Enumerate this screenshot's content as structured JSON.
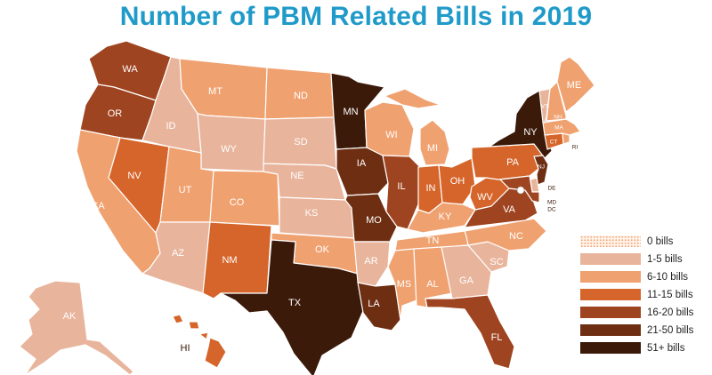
{
  "title": "Number of PBM Related Bills in 2019",
  "colors": {
    "title": "#1f9ac9",
    "0": "#fff3ea",
    "1-5": "#e8b49c",
    "6-10": "#f0a170",
    "11-15": "#d5652a",
    "16-20": "#9f4420",
    "21-50": "#6e2e12",
    "51+": "#3b1a0a"
  },
  "legend": [
    {
      "key": "0",
      "label": "0 bills"
    },
    {
      "key": "1-5",
      "label": "1-5 bills"
    },
    {
      "key": "6-10",
      "label": "6-10 bills"
    },
    {
      "key": "11-15",
      "label": "11-15 bills"
    },
    {
      "key": "16-20",
      "label": "16-20 bills"
    },
    {
      "key": "21-50",
      "label": "21-50 bills"
    },
    {
      "key": "51+",
      "label": "51+ bills"
    }
  ],
  "states": {
    "WA": "16-20",
    "OR": "16-20",
    "CA": "6-10",
    "NV": "11-15",
    "ID": "1-5",
    "MT": "6-10",
    "WY": "1-5",
    "UT": "6-10",
    "AZ": "1-5",
    "CO": "6-10",
    "NM": "11-15",
    "ND": "6-10",
    "SD": "1-5",
    "NE": "1-5",
    "KS": "1-5",
    "OK": "6-10",
    "TX": "51+",
    "MN": "51+",
    "IA": "21-50",
    "MO": "21-50",
    "AR": "1-5",
    "LA": "21-50",
    "WI": "6-10",
    "IL": "16-20",
    "MI": "6-10",
    "IN": "11-15",
    "OH": "11-15",
    "KY": "6-10",
    "TN": "6-10",
    "MS": "6-10",
    "AL": "6-10",
    "GA": "1-5",
    "FL": "16-20",
    "SC": "1-5",
    "NC": "6-10",
    "VA": "16-20",
    "WV": "11-15",
    "PA": "11-15",
    "NY": "51+",
    "VT": "1-5",
    "NH": "6-10",
    "ME": "6-10",
    "MA": "6-10",
    "CT": "11-15",
    "RI": "6-10",
    "NJ": "21-50",
    "DE": "1-5",
    "MD": "16-20",
    "DC": "0",
    "AK": "1-5",
    "HI": "11-15"
  },
  "labels": {
    "WA": "WA",
    "OR": "OR",
    "CA": "CA",
    "NV": "NV",
    "ID": "ID",
    "MT": "MT",
    "WY": "WY",
    "UT": "UT",
    "AZ": "AZ",
    "CO": "CO",
    "NM": "NM",
    "ND": "ND",
    "SD": "SD",
    "NE": "NE",
    "KS": "KS",
    "OK": "OK",
    "TX": "TX",
    "MN": "MN",
    "IA": "IA",
    "MO": "MO",
    "AR": "AR",
    "LA": "LA",
    "WI": "WI",
    "IL": "IL",
    "MI": "MI",
    "IN": "IN",
    "OH": "OH",
    "KY": "KY",
    "TN": "TN",
    "MS": "MS",
    "AL": "AL",
    "GA": "GA",
    "FL": "FL",
    "SC": "SC",
    "NC": "NC",
    "VA": "VA",
    "WV": "WV",
    "PA": "PA",
    "NY": "NY",
    "VT": "VT",
    "NH": "NH",
    "ME": "ME",
    "MA": "MA",
    "CT": "CT",
    "RI": "RI",
    "NJ": "NJ",
    "DE": "DE",
    "MD": "MD",
    "DC": "DC",
    "AK": "AK",
    "HI": "HI"
  }
}
